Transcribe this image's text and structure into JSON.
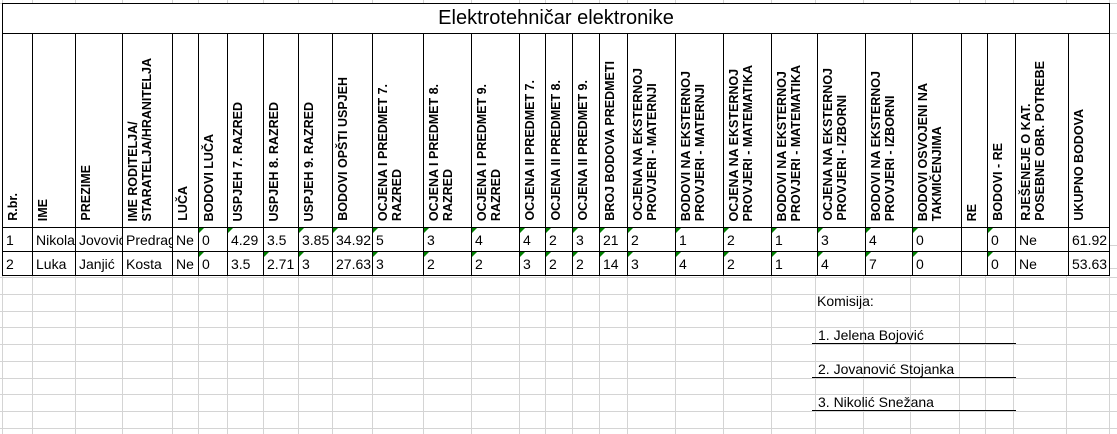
{
  "title": "Elektrotehničar elektronike",
  "table": {
    "columns": [
      {
        "label": "R.br."
      },
      {
        "label": "IME"
      },
      {
        "label": "PREZIME"
      },
      {
        "label": "IME RODITELJA/\nSTARATELJA/HRANITELJA"
      },
      {
        "label": "LUČA"
      },
      {
        "label": "BODOVI LUČA"
      },
      {
        "label": "USPJEH 7. RAZRED"
      },
      {
        "label": "USPJEH 8. RAZRED"
      },
      {
        "label": "USPJEH 9. RAZRED"
      },
      {
        "label": "BODOVI OPŠTI USPJEH"
      },
      {
        "label": "OCJENA I PREDMET 7.\nRAZRED"
      },
      {
        "label": "OCJENA I PREDMET 8.\nRAZRED"
      },
      {
        "label": "OCJENA I PREDMET 9.\nRAZRED"
      },
      {
        "label": "OCJENA II PREDMET 7."
      },
      {
        "label": "OCJENA II PREDMET 8."
      },
      {
        "label": "OCJENA II PREDMET 9."
      },
      {
        "label": "BROJ BODOVA PREDMETI"
      },
      {
        "label": "OCJENA NA EKSTERNOJ\nPROVJERI - MATERNJI"
      },
      {
        "label": "BODOVI NA EKSTERNOJ\nPROVJERI - MATERNJI"
      },
      {
        "label": "OCJENA NA EKSTERNOJ\nPROVJERI - MATEMATIKA"
      },
      {
        "label": "BODOVI NA EKSTERNOJ\nPROVJERI - MATEMATIKA"
      },
      {
        "label": "OCJENA NA EKSTERNOJ\nPROVJERI - IZBORNI"
      },
      {
        "label": "BODOVI NA EKSTERNOJ\nPROVJERI - IZBORNI"
      },
      {
        "label": "BODOVI OSVOJENI NA\nTAKMIČENJIMA"
      },
      {
        "label": "RE"
      },
      {
        "label": "BODOVI - RE"
      },
      {
        "label": "RJEŠENEJE O KAT.\nPOSEBNE OBR. POTREBE"
      },
      {
        "label": "UKUPNO BODOVA"
      }
    ],
    "rows": [
      {
        "cells": [
          "1",
          "Nikola",
          "Jovović",
          "Predrag",
          "Ne",
          "0",
          "4.29",
          "3.5",
          "3.85",
          "34.92",
          "5",
          "3",
          "4",
          "4",
          "2",
          "3",
          "21",
          "2",
          "1",
          "2",
          "1",
          "3",
          "4",
          "0",
          "",
          "0",
          "Ne",
          "61.92"
        ],
        "flags": [
          5,
          6,
          8,
          9,
          10,
          11,
          12,
          13,
          14,
          15,
          16,
          17,
          18,
          19,
          20,
          21,
          22,
          23,
          25
        ]
      },
      {
        "cells": [
          "2",
          "Luka",
          "Janjić",
          "Kosta",
          "Ne",
          "0",
          "3.5",
          "2.71",
          "3",
          "27.63",
          "3",
          "2",
          "2",
          "3",
          "2",
          "2",
          "14",
          "3",
          "4",
          "2",
          "1",
          "4",
          "7",
          "0",
          "",
          "0",
          "Ne",
          "53.63"
        ],
        "flags": [
          5,
          7,
          8,
          10,
          11,
          12,
          13,
          14,
          15,
          16,
          17,
          18,
          19,
          20,
          21,
          22,
          23,
          25
        ]
      }
    ]
  },
  "komisija": {
    "title": "Komisija:",
    "members": [
      "1. Jelena Bojović",
      "2. Jovanović Stojanka",
      "3. Nikolić Snežana"
    ]
  },
  "colors": {
    "error_indicator": "#008000",
    "grid_line": "#d4d4d4",
    "table_border": "#000000"
  }
}
